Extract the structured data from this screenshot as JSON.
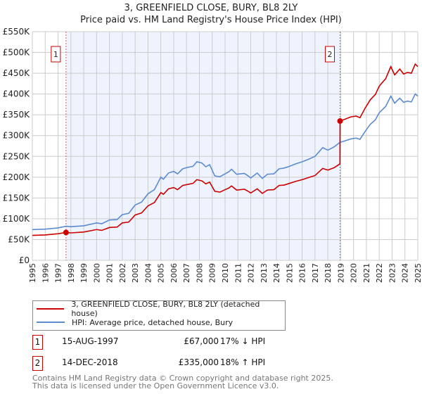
{
  "chart_data": {
    "type": "line",
    "title": "3, GREENFIELD CLOSE, BURY, BL8 2LY",
    "subtitle": "Price paid vs. HM Land Registry's House Price Index (HPI)",
    "xlim": [
      1995,
      2025
    ],
    "ylim": [
      0,
      550000
    ],
    "y_ticks": [
      {
        "v": 0,
        "label": "£0"
      },
      {
        "v": 50,
        "label": "£50K"
      },
      {
        "v": 100,
        "label": "£100K"
      },
      {
        "v": 150,
        "label": "£150K"
      },
      {
        "v": 200,
        "label": "£200K"
      },
      {
        "v": 250,
        "label": "£250K"
      },
      {
        "v": 300,
        "label": "£300K"
      },
      {
        "v": 350,
        "label": "£350K"
      },
      {
        "v": 400,
        "label": "£400K"
      },
      {
        "v": 450,
        "label": "£450K"
      },
      {
        "v": 500,
        "label": "£500K"
      },
      {
        "v": 550,
        "label": "£550K"
      }
    ],
    "x_ticks": [
      "1995",
      "1996",
      "1997",
      "1998",
      "1999",
      "2000",
      "2001",
      "2002",
      "2003",
      "2004",
      "2005",
      "2006",
      "2007",
      "2008",
      "2009",
      "2010",
      "2011",
      "2012",
      "2013",
      "2014",
      "2015",
      "2016",
      "2017",
      "2018",
      "2019",
      "2020",
      "2021",
      "2022",
      "2023",
      "2024",
      "2025"
    ],
    "grid": true,
    "shaded_range": [
      1997.62,
      2018.95
    ],
    "series": [
      {
        "name": "3, GREENFIELD CLOSE, BURY, BL8 2LY (detached house)",
        "color": "#cc0000",
        "unit": "£K",
        "points": [
          [
            1995,
            60
          ],
          [
            1996,
            61
          ],
          [
            1997,
            64
          ],
          [
            1997.62,
            67
          ],
          [
            1998,
            66
          ],
          [
            1999,
            68
          ],
          [
            2000,
            74
          ],
          [
            2000.4,
            72
          ],
          [
            2001,
            79
          ],
          [
            2001.6,
            80
          ],
          [
            2002,
            90
          ],
          [
            2002.5,
            92
          ],
          [
            2003,
            109
          ],
          [
            2003.5,
            114
          ],
          [
            2004,
            131
          ],
          [
            2004.5,
            139
          ],
          [
            2005,
            163
          ],
          [
            2005.2,
            159
          ],
          [
            2005.6,
            172
          ],
          [
            2006,
            175
          ],
          [
            2006.3,
            170
          ],
          [
            2006.7,
            180
          ],
          [
            2007,
            182
          ],
          [
            2007.5,
            185
          ],
          [
            2007.8,
            194
          ],
          [
            2008.2,
            191
          ],
          [
            2008.5,
            184
          ],
          [
            2008.8,
            188
          ],
          [
            2009.2,
            166
          ],
          [
            2009.6,
            164
          ],
          [
            2010,
            170
          ],
          [
            2010.3,
            174
          ],
          [
            2010.5,
            179
          ],
          [
            2010.9,
            169
          ],
          [
            2011.5,
            171
          ],
          [
            2011.8,
            166
          ],
          [
            2012,
            162
          ],
          [
            2012.5,
            172
          ],
          [
            2012.9,
            161
          ],
          [
            2013.3,
            169
          ],
          [
            2013.8,
            170
          ],
          [
            2014.2,
            180
          ],
          [
            2014.6,
            181
          ],
          [
            2015,
            185
          ],
          [
            2015.5,
            190
          ],
          [
            2016,
            194
          ],
          [
            2016.5,
            199
          ],
          [
            2017,
            204
          ],
          [
            2017.6,
            221
          ],
          [
            2018,
            217
          ],
          [
            2018.5,
            223
          ],
          [
            2018.94,
            232
          ],
          [
            2018.95,
            335
          ],
          [
            2019.3,
            339
          ],
          [
            2019.8,
            345
          ],
          [
            2020.2,
            347
          ],
          [
            2020.5,
            343
          ],
          [
            2020.9,
            366
          ],
          [
            2021.3,
            386
          ],
          [
            2021.7,
            399
          ],
          [
            2022,
            419
          ],
          [
            2022.5,
            437
          ],
          [
            2022.9,
            466
          ],
          [
            2023.2,
            446
          ],
          [
            2023.6,
            460
          ],
          [
            2023.9,
            448
          ],
          [
            2024.2,
            452
          ],
          [
            2024.5,
            450
          ],
          [
            2024.8,
            472
          ],
          [
            2025,
            466
          ]
        ]
      },
      {
        "name": "HPI: Average price, detached house, Bury",
        "color": "#5b8bd0",
        "unit": "£K",
        "points": [
          [
            1995,
            74
          ],
          [
            1996,
            75
          ],
          [
            1997,
            78
          ],
          [
            1997.62,
            82
          ],
          [
            1998,
            81
          ],
          [
            1999,
            83
          ],
          [
            2000,
            90
          ],
          [
            2000.4,
            88
          ],
          [
            2001,
            97
          ],
          [
            2001.6,
            98
          ],
          [
            2002,
            110
          ],
          [
            2002.5,
            113
          ],
          [
            2003,
            133
          ],
          [
            2003.5,
            140
          ],
          [
            2004,
            160
          ],
          [
            2004.5,
            170
          ],
          [
            2005,
            200
          ],
          [
            2005.2,
            195
          ],
          [
            2005.6,
            210
          ],
          [
            2006,
            214
          ],
          [
            2006.3,
            208
          ],
          [
            2006.7,
            220
          ],
          [
            2007,
            223
          ],
          [
            2007.5,
            226
          ],
          [
            2007.8,
            237
          ],
          [
            2008.2,
            234
          ],
          [
            2008.5,
            225
          ],
          [
            2008.8,
            230
          ],
          [
            2009.2,
            203
          ],
          [
            2009.6,
            201
          ],
          [
            2010,
            208
          ],
          [
            2010.3,
            213
          ],
          [
            2010.5,
            219
          ],
          [
            2010.9,
            207
          ],
          [
            2011.5,
            209
          ],
          [
            2011.8,
            203
          ],
          [
            2012,
            198
          ],
          [
            2012.5,
            210
          ],
          [
            2012.9,
            197
          ],
          [
            2013.3,
            207
          ],
          [
            2013.8,
            208
          ],
          [
            2014.2,
            220
          ],
          [
            2014.6,
            222
          ],
          [
            2015,
            226
          ],
          [
            2015.5,
            232
          ],
          [
            2016,
            237
          ],
          [
            2016.5,
            243
          ],
          [
            2017,
            250
          ],
          [
            2017.6,
            271
          ],
          [
            2018,
            265
          ],
          [
            2018.5,
            273
          ],
          [
            2018.95,
            284
          ],
          [
            2019.3,
            287
          ],
          [
            2019.8,
            292
          ],
          [
            2020.2,
            294
          ],
          [
            2020.5,
            291
          ],
          [
            2020.9,
            310
          ],
          [
            2021.3,
            327
          ],
          [
            2021.7,
            338
          ],
          [
            2022,
            355
          ],
          [
            2022.5,
            370
          ],
          [
            2022.9,
            395
          ],
          [
            2023.2,
            378
          ],
          [
            2023.6,
            390
          ],
          [
            2023.9,
            380
          ],
          [
            2024.2,
            383
          ],
          [
            2024.5,
            381
          ],
          [
            2024.8,
            400
          ],
          [
            2025,
            395
          ]
        ]
      }
    ],
    "annotations": [
      {
        "label": "1",
        "x": 1997.62,
        "y": 67
      },
      {
        "label": "2",
        "x": 2018.95,
        "y": 335
      }
    ]
  },
  "legend": {
    "items": [
      {
        "label": "3, GREENFIELD CLOSE, BURY, BL8 2LY (detached house)",
        "color": "#cc0000"
      },
      {
        "label": "HPI: Average price, detached house, Bury",
        "color": "#5b8bd0"
      }
    ]
  },
  "sales": [
    {
      "num": "1",
      "date": "15-AUG-1997",
      "price": "£67,000",
      "hpi": "17% ↓ HPI"
    },
    {
      "num": "2",
      "date": "14-DEC-2018",
      "price": "£335,000",
      "hpi": "18% ↑ HPI"
    }
  ],
  "footer": {
    "line1": "Contains HM Land Registry data © Crown copyright and database right 2025.",
    "line2": "This data is licensed under the Open Government Licence v3.0."
  }
}
